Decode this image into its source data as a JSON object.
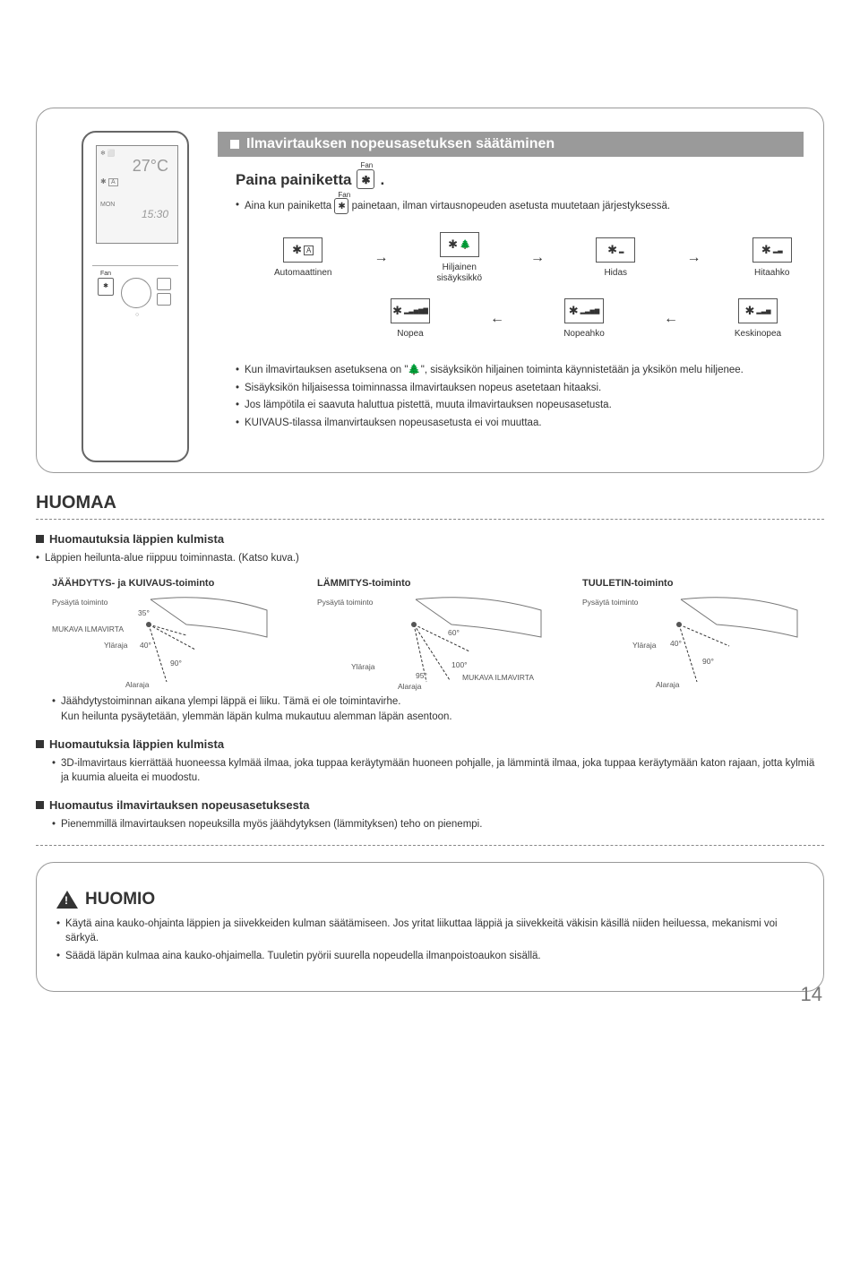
{
  "page_number": "14",
  "section_title": "Ilmavirtauksen nopeusasetuksen säätäminen",
  "press_button": "Paina painiketta",
  "press_button_suffix": ".",
  "intro_bullet_pre": "Aina kun painiketta",
  "intro_bullet_post": "painetaan, ilman virtausnopeuden asetusta muutetaan järjestyksessä.",
  "speeds_top": [
    {
      "label": "Automaattinen"
    },
    {
      "label": "Hiljainen\nsisäyksikkö"
    },
    {
      "label": "Hidas"
    },
    {
      "label": "Hitaahko"
    }
  ],
  "speeds_bottom": [
    {
      "label": "Nopea"
    },
    {
      "label": "Nopeahko"
    },
    {
      "label": "Keskinopea"
    }
  ],
  "bullets_main": [
    "Kun ilmavirtauksen asetuksena on \"🌲\", sisäyksikön hiljainen toiminta käynnistetään ja yksikön melu hiljenee.",
    "Sisäyksikön hiljaisessa toiminnassa ilmavirtauksen nopeus asetetaan hitaaksi.",
    "Jos lämpötila ei saavuta haluttua pistettä, muuta ilmavirtauksen nopeusasetusta.",
    "KUIVAUS-tilassa ilmanvirtauksen nopeusasetusta ei voi muuttaa."
  ],
  "remote": {
    "temp": "27°C",
    "day": "MON",
    "time": "15:30"
  },
  "huomaa": {
    "title": "HUOMAA",
    "sub1": "Huomautuksia läppien kulmista",
    "sub1_bullet": "Läppien heilunta-alue riippuu toiminnasta. (Katso kuva.)",
    "modes": [
      {
        "title": "JÄÄHDYTYS- ja KUIVAUS-toiminto",
        "labels": {
          "stop": "Pysäytä toiminto",
          "upper": "Yläraja",
          "lower": "Alaraja",
          "comfort": "MUKAVA ILMAVIRTA",
          "a1": "35°",
          "a2": "40°",
          "a3": "90°"
        }
      },
      {
        "title": "LÄMMITYS-toiminto",
        "labels": {
          "stop": "Pysäytä toiminto",
          "upper": "Yläraja",
          "lower": "Alaraja",
          "comfort": "MUKAVA ILMAVIRTA",
          "a1": "60°",
          "a2": "95°",
          "a3": "100°"
        }
      },
      {
        "title": "TUULETIN-toiminto",
        "labels": {
          "stop": "Pysäytä toiminto",
          "upper": "Yläraja",
          "lower": "Alaraja",
          "a1": "40°",
          "a2": "90°"
        }
      }
    ],
    "after_fig_bullets": [
      "Jäähdytystoiminnan aikana ylempi läppä ei liiku. Tämä ei ole toimintavirhe.\nKun heilunta pysäytetään, ylemmän läpän kulma mukautuu alemman läpän asentoon.",
      ""
    ],
    "sub2": "Huomautuksia läppien kulmista",
    "sub2_bullets": [
      "3D-ilmavirtaus kierrättää huoneessa kylmää ilmaa, joka tuppaa keräytymään huoneen pohjalle, ja lämmintä ilmaa, joka tuppaa keräytymään katon rajaan, jotta kylmiä ja kuumia alueita ei muodostu."
    ],
    "sub3": "Huomautus ilmavirtauksen nopeusasetuksesta",
    "sub3_bullets": [
      "Pienemmillä ilmavirtauksen nopeuksilla myös jäähdytyksen (lämmityksen) teho on pienempi."
    ]
  },
  "huomio": {
    "title": "HUOMIO",
    "bullets": [
      "Käytä aina kauko-ohjainta läppien ja siivekkeiden kulman säätämiseen. Jos yritat liikuttaa läppiä ja siivekkeitä väkisin käsillä niiden heiluessa, mekanismi voi särkyä.",
      "Säädä läpän kulmaa aina kauko-ohjaimella. Tuuletin pyörii suurella nopeudella ilmanpoistoaukon sisällä."
    ]
  },
  "colors": {
    "title_bar_bg": "#9a9a9a",
    "title_bar_text": "#ffffff",
    "border": "#999999",
    "text": "#333333",
    "page_num": "#777777"
  }
}
